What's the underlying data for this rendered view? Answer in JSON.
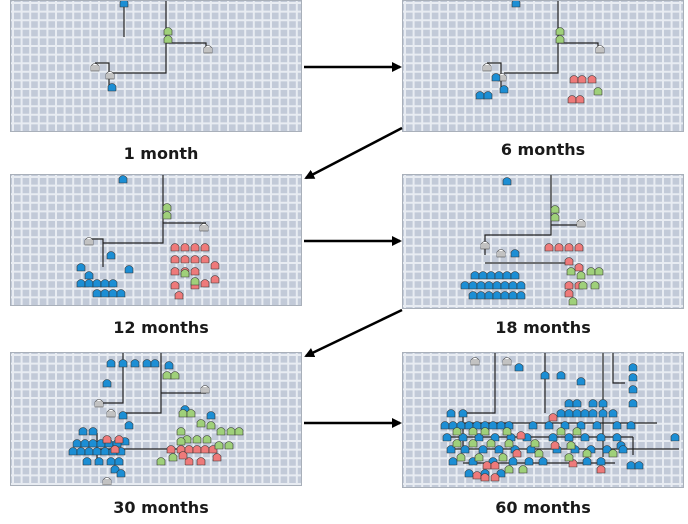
{
  "panels": [
    {
      "label": "1 month"
    },
    {
      "label": "6 months"
    },
    {
      "label": "12 months"
    },
    {
      "label": "18 months"
    },
    {
      "label": "30 months"
    },
    {
      "label": "60 months"
    }
  ],
  "colors": {
    "grid_bg": "#c2cad8",
    "grid_line": "#e8ecf2",
    "blue_node": "#1c8ed4",
    "red_node": "#ee7a7a",
    "green_node": "#9fd07a",
    "edge": "#222222"
  },
  "icons": [
    "blue-node-icon",
    "red-node-icon",
    "green-node-icon",
    "gray-node-icon",
    "arrow-icon"
  ]
}
